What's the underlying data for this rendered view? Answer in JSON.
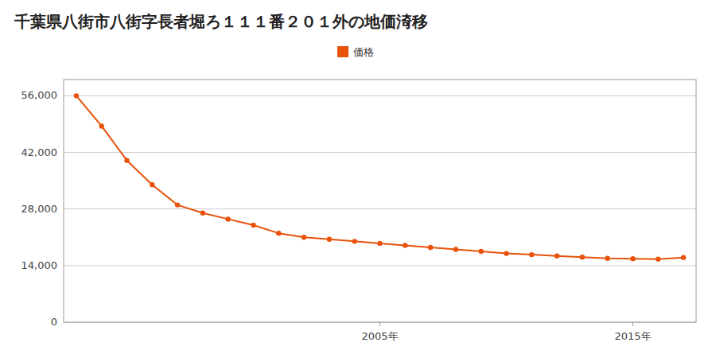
{
  "chart_data": {
    "type": "line",
    "title": "千葉県八街市八街字長者堀ろ１１１番２０１外の地価渏移",
    "x": [
      1993,
      1994,
      1995,
      1996,
      1997,
      1998,
      1999,
      2000,
      2001,
      2002,
      2003,
      2004,
      2005,
      2006,
      2007,
      2008,
      2009,
      2010,
      2011,
      2012,
      2013,
      2014,
      2015,
      2016,
      2017
    ],
    "series": [
      {
        "name": "価格",
        "color": "#e8520a",
        "marker": "circle",
        "values": [
          56000,
          48500,
          40000,
          34000,
          29000,
          27000,
          25500,
          24000,
          22000,
          21000,
          20500,
          20000,
          19500,
          19000,
          18500,
          18000,
          17500,
          17000,
          16700,
          16400,
          16100,
          15800,
          15700,
          15600,
          16000
        ]
      }
    ],
    "xlim": [
      1992.5,
      2017.5
    ],
    "xticks": [
      {
        "value": 2005,
        "label": "2005年"
      },
      {
        "value": 2015,
        "label": "2015年"
      }
    ],
    "ylim": [
      0,
      60000
    ],
    "yticks": [
      0,
      {
        "value": 14000,
        "label": "14,000"
      },
      {
        "value": 28000,
        "label": "28,000"
      },
      {
        "value": 42000,
        "label": "42,000"
      },
      {
        "value": 56000,
        "label": "56,000"
      }
    ],
    "grid": true,
    "legend": "top"
  }
}
